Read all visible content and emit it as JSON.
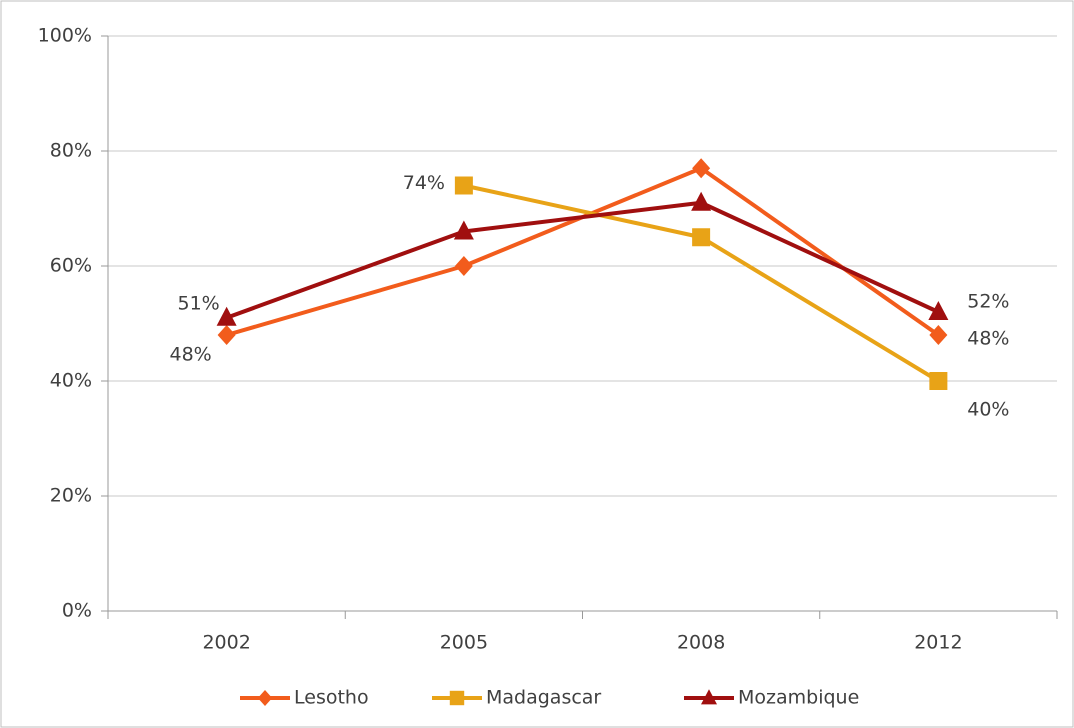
{
  "chart_data": {
    "type": "line",
    "categories": [
      "2002",
      "2005",
      "2008",
      "2012"
    ],
    "series": [
      {
        "name": "Lesotho",
        "color": "#f25c1c",
        "marker": "diamond",
        "values": [
          48,
          60,
          77,
          48
        ],
        "value_labels": [
          "48%",
          null,
          null,
          "48%"
        ]
      },
      {
        "name": "Madagascar",
        "color": "#e8a317",
        "marker": "square",
        "values": [
          null,
          74,
          65,
          40
        ],
        "value_labels": [
          null,
          "74%",
          null,
          "40%"
        ]
      },
      {
        "name": "Mozambique",
        "color": "#a00f0f",
        "marker": "triangle",
        "values": [
          51,
          66,
          71,
          52
        ],
        "value_labels": [
          "51%",
          null,
          null,
          "52%"
        ]
      }
    ],
    "ylim": [
      0,
      100
    ],
    "yticks": [
      {
        "value": 0,
        "label": "0%"
      },
      {
        "value": 20,
        "label": "20%"
      },
      {
        "value": 40,
        "label": "40%"
      },
      {
        "value": 60,
        "label": "60%"
      },
      {
        "value": 80,
        "label": "80%"
      },
      {
        "value": 100,
        "label": "100%"
      }
    ],
    "grid": true,
    "legend": "bottom"
  }
}
